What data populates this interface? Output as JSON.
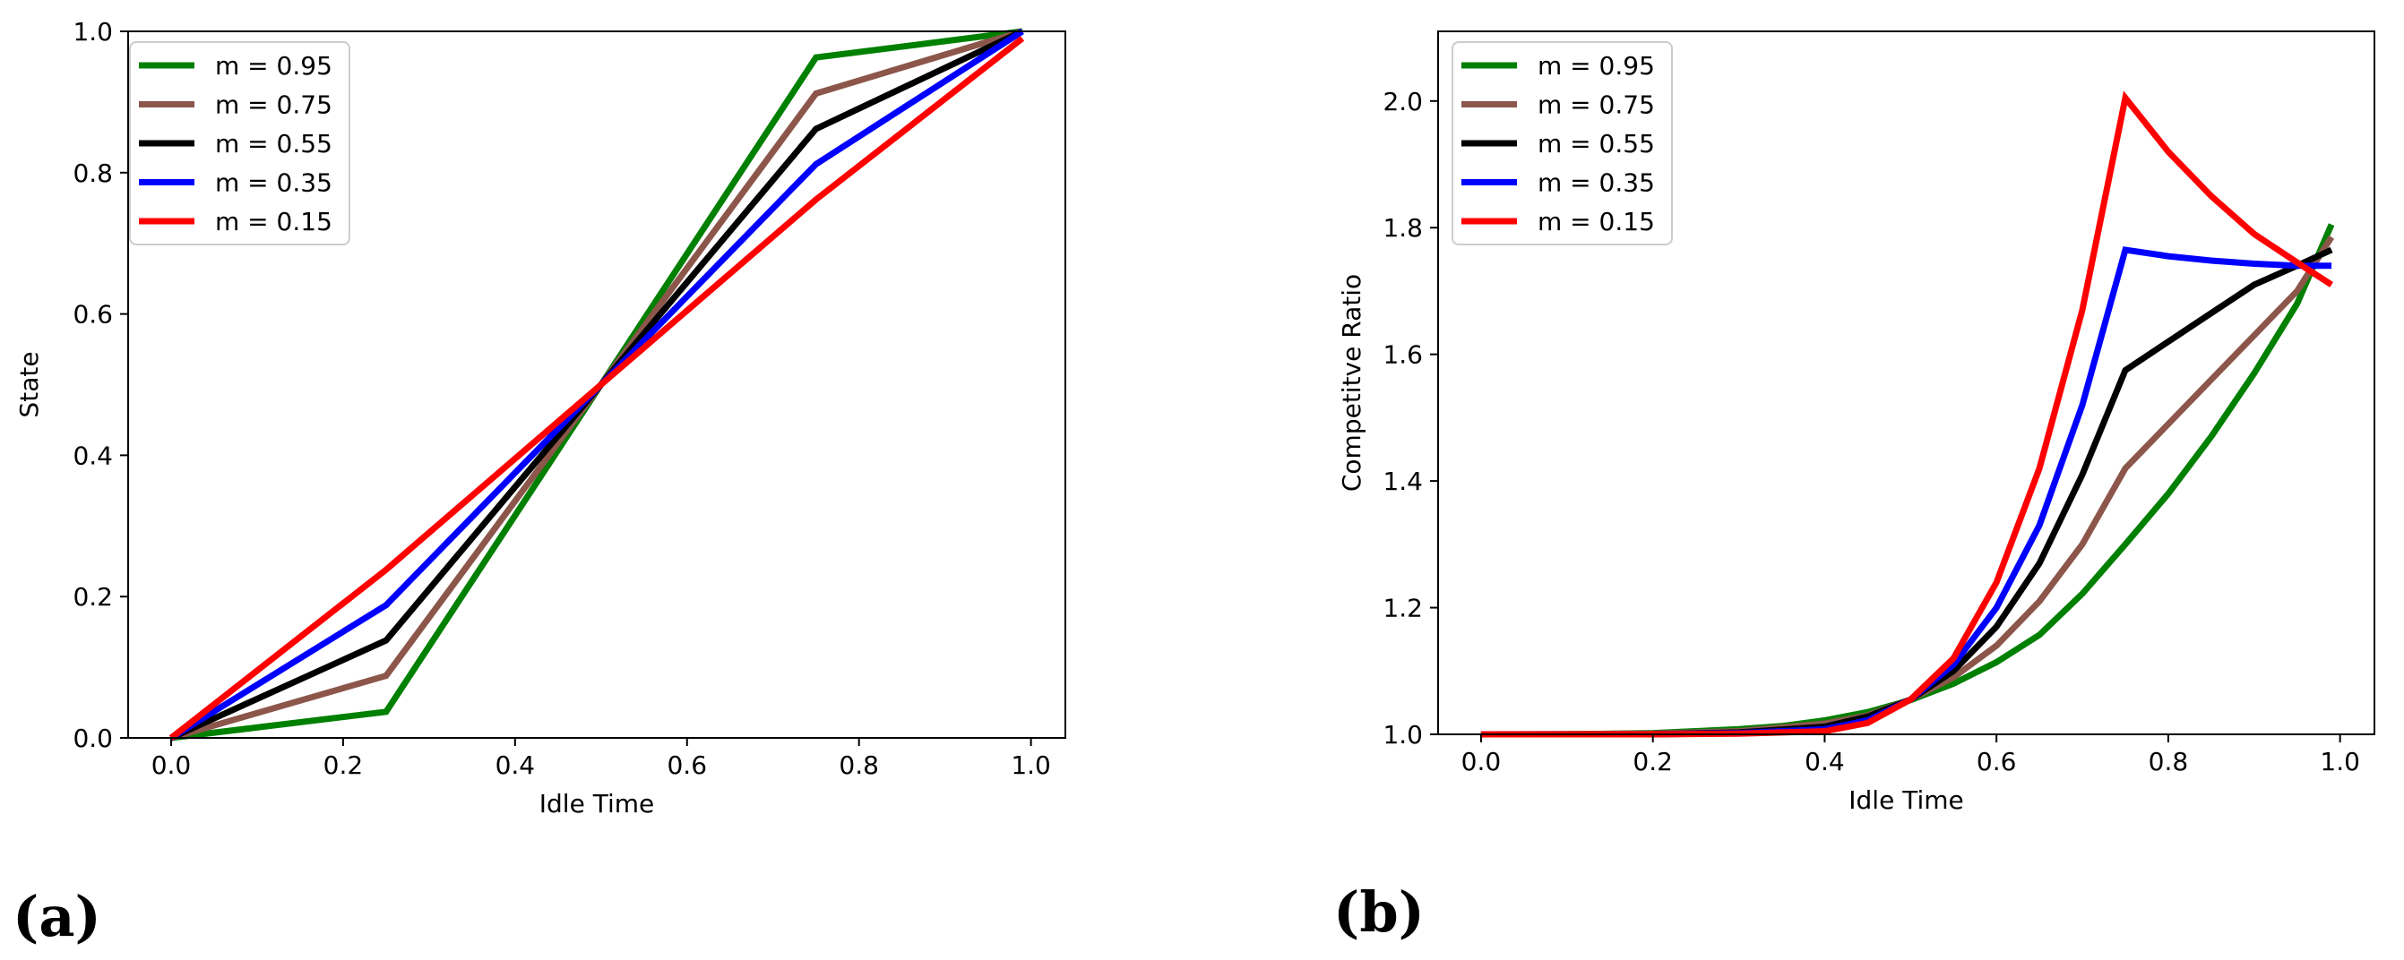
{
  "chart_data": [
    {
      "type": "line",
      "panel_label": "(a)",
      "xlabel": "Idle Time",
      "ylabel": "State",
      "xlim": [
        -0.05,
        1.04
      ],
      "ylim": [
        0.0,
        1.0
      ],
      "xticks": [
        "0.0",
        "0.2",
        "0.4",
        "0.6",
        "0.8",
        "1.0"
      ],
      "yticks": [
        "0.0",
        "0.2",
        "0.4",
        "0.6",
        "0.8",
        "1.0"
      ],
      "legend_position": "top-left",
      "series": [
        {
          "name": "m = 0.95",
          "color": "#008000",
          "x": [
            0,
            0.25,
            0.5,
            0.75,
            0.99
          ],
          "y": [
            0,
            0.037,
            0.5,
            0.963,
            1.0
          ]
        },
        {
          "name": "m = 0.75",
          "color": "#8c564b",
          "x": [
            0,
            0.25,
            0.5,
            0.75,
            0.99
          ],
          "y": [
            0,
            0.088,
            0.5,
            0.912,
            1.0
          ]
        },
        {
          "name": "m = 0.55",
          "color": "#000000",
          "x": [
            0,
            0.25,
            0.5,
            0.75,
            0.99
          ],
          "y": [
            0,
            0.138,
            0.5,
            0.862,
            1.0
          ]
        },
        {
          "name": "m = 0.35",
          "color": "#0000ff",
          "x": [
            0,
            0.25,
            0.5,
            0.75,
            0.99
          ],
          "y": [
            0,
            0.188,
            0.5,
            0.812,
            1.0
          ]
        },
        {
          "name": "m = 0.15",
          "color": "#ff0000",
          "x": [
            0,
            0.25,
            0.5,
            0.75,
            0.99
          ],
          "y": [
            0,
            0.238,
            0.5,
            0.762,
            0.99
          ]
        }
      ]
    },
    {
      "type": "line",
      "panel_label": "(b)",
      "xlabel": "Idle Time",
      "ylabel": "Competitve Ratio",
      "xlim": [
        -0.05,
        1.04
      ],
      "ylim": [
        1.0,
        2.11
      ],
      "xticks": [
        "0.0",
        "0.2",
        "0.4",
        "0.6",
        "0.8",
        "1.0"
      ],
      "yticks": [
        "1.0",
        "1.2",
        "1.4",
        "1.6",
        "1.8",
        "2.0"
      ],
      "legend_position": "top-left",
      "series": [
        {
          "name": "m = 0.95",
          "color": "#008000",
          "x": [
            0,
            0.1,
            0.2,
            0.3,
            0.35,
            0.4,
            0.45,
            0.5,
            0.55,
            0.6,
            0.65,
            0.7,
            0.75,
            0.8,
            0.85,
            0.9,
            0.95,
            0.99
          ],
          "y": [
            1.0,
            1.0,
            1.002,
            1.008,
            1.013,
            1.022,
            1.035,
            1.054,
            1.08,
            1.114,
            1.157,
            1.222,
            1.3,
            1.38,
            1.47,
            1.57,
            1.68,
            1.805
          ]
        },
        {
          "name": "m = 0.75",
          "color": "#8c564b",
          "x": [
            0,
            0.2,
            0.3,
            0.4,
            0.45,
            0.5,
            0.55,
            0.6,
            0.65,
            0.7,
            0.75,
            0.8,
            0.85,
            0.9,
            0.95,
            0.99
          ],
          "y": [
            1.0,
            1.001,
            1.005,
            1.017,
            1.03,
            1.055,
            1.09,
            1.14,
            1.21,
            1.3,
            1.42,
            1.49,
            1.56,
            1.63,
            1.7,
            1.785
          ]
        },
        {
          "name": "m = 0.55",
          "color": "#000000",
          "x": [
            0,
            0.2,
            0.3,
            0.4,
            0.45,
            0.5,
            0.55,
            0.6,
            0.65,
            0.7,
            0.75,
            0.8,
            0.85,
            0.9,
            0.95,
            0.99
          ],
          "y": [
            1.0,
            1.0,
            1.003,
            1.012,
            1.028,
            1.055,
            1.1,
            1.17,
            1.27,
            1.41,
            1.575,
            1.62,
            1.665,
            1.71,
            1.74,
            1.765
          ]
        },
        {
          "name": "m = 0.35",
          "color": "#0000ff",
          "x": [
            0,
            0.2,
            0.3,
            0.4,
            0.45,
            0.5,
            0.55,
            0.6,
            0.65,
            0.7,
            0.75,
            0.8,
            0.85,
            0.9,
            0.95,
            0.99
          ],
          "y": [
            1.0,
            1.0,
            1.002,
            1.008,
            1.022,
            1.055,
            1.11,
            1.2,
            1.33,
            1.52,
            1.765,
            1.755,
            1.748,
            1.743,
            1.74,
            1.74
          ]
        },
        {
          "name": "m = 0.15",
          "color": "#ff0000",
          "x": [
            0,
            0.2,
            0.3,
            0.4,
            0.45,
            0.5,
            0.55,
            0.6,
            0.65,
            0.7,
            0.75,
            0.8,
            0.85,
            0.9,
            0.95,
            0.99
          ],
          "y": [
            1.0,
            1.0,
            1.001,
            1.005,
            1.018,
            1.055,
            1.12,
            1.24,
            1.42,
            1.67,
            2.005,
            1.92,
            1.85,
            1.79,
            1.745,
            1.71
          ]
        }
      ]
    }
  ]
}
